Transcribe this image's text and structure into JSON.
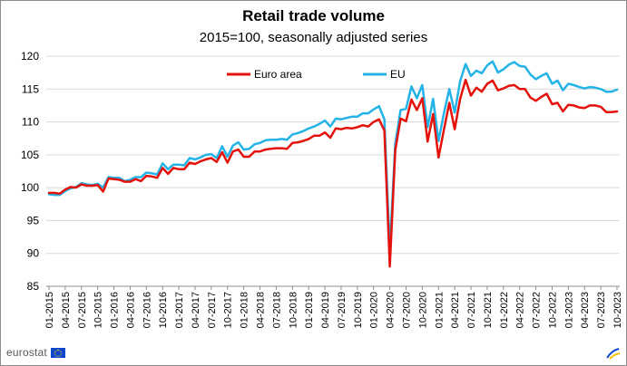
{
  "chart_data": {
    "type": "line",
    "title": "Retail trade volume",
    "subtitle": "2015=100, seasonally adjusted series",
    "xlabel": "",
    "ylabel": "",
    "ylim": [
      85,
      120
    ],
    "yticks": [
      85,
      90,
      95,
      100,
      105,
      110,
      115,
      120
    ],
    "grid": "horizontal",
    "legend_position": "top-left",
    "x_start": "2015-01",
    "x_tick_labels": [
      "01-2015",
      "04-2015",
      "07-2015",
      "10-2015",
      "01-2016",
      "04-2016",
      "07-2016",
      "10-2016",
      "01-2017",
      "04-2017",
      "07-2017",
      "10-2017",
      "01-2018",
      "04-2018",
      "07-2018",
      "10-2018",
      "01-2019",
      "04-2019",
      "07-2019",
      "10-2019",
      "01-2020",
      "04-2020",
      "07-2020",
      "10-2020",
      "01-2021",
      "04-2021",
      "07-2021",
      "10-2021",
      "01-2022",
      "04-2022",
      "07-2022",
      "10-2022",
      "01-2023",
      "04-2023",
      "07-2023",
      "10-2023"
    ],
    "series": [
      {
        "name": "Euro area",
        "color": "#e3120b",
        "values": [
          99.2,
          99.2,
          99.1,
          99.7,
          100.1,
          100.0,
          100.5,
          100.3,
          100.3,
          100.4,
          99.4,
          101.4,
          101.3,
          101.2,
          100.9,
          100.9,
          101.3,
          101.0,
          101.8,
          101.7,
          101.5,
          103.0,
          102.1,
          103.0,
          102.8,
          102.8,
          103.8,
          103.6,
          104.0,
          104.3,
          104.5,
          103.9,
          105.4,
          103.8,
          105.5,
          105.8,
          104.7,
          104.7,
          105.5,
          105.5,
          105.8,
          105.9,
          106.0,
          106.0,
          105.9,
          106.8,
          106.9,
          107.1,
          107.4,
          107.9,
          107.9,
          108.4,
          107.6,
          109.0,
          108.9,
          109.1,
          109.0,
          109.2,
          109.5,
          109.3,
          110.0,
          110.4,
          108.7,
          88.0,
          105.7,
          110.5,
          110.1,
          113.4,
          111.8,
          113.6,
          107.0,
          111.2,
          104.6,
          108.8,
          112.9,
          108.9,
          113.5,
          116.4,
          114.0,
          115.2,
          114.6,
          115.8,
          116.3,
          114.8,
          115.1,
          115.5,
          115.6,
          115.0,
          115.0,
          113.7,
          113.2,
          113.8,
          114.3,
          112.7,
          112.9,
          111.6,
          112.6,
          112.5,
          112.2,
          112.1,
          112.5,
          112.5,
          112.3,
          111.5,
          111.5,
          111.6
        ]
      },
      {
        "name": "EU",
        "color": "#24b3e6",
        "values": [
          99.0,
          98.9,
          98.9,
          99.5,
          99.9,
          100.1,
          100.7,
          100.5,
          100.4,
          100.6,
          100.0,
          101.6,
          101.5,
          101.5,
          101.0,
          101.2,
          101.6,
          101.6,
          102.3,
          102.2,
          102.0,
          103.7,
          102.8,
          103.5,
          103.5,
          103.4,
          104.5,
          104.3,
          104.6,
          105.0,
          105.1,
          104.5,
          106.3,
          104.7,
          106.4,
          106.9,
          105.8,
          105.9,
          106.6,
          106.8,
          107.2,
          107.3,
          107.3,
          107.4,
          107.3,
          108.1,
          108.3,
          108.6,
          109.0,
          109.3,
          109.7,
          110.2,
          109.3,
          110.5,
          110.4,
          110.6,
          110.8,
          110.8,
          111.3,
          111.3,
          111.9,
          112.4,
          110.4,
          90.5,
          106.7,
          111.8,
          112.0,
          115.4,
          113.6,
          115.6,
          109.2,
          113.5,
          107.1,
          111.3,
          115.0,
          111.4,
          116.2,
          118.8,
          117.0,
          117.8,
          117.4,
          118.6,
          119.2,
          117.5,
          118.0,
          118.7,
          119.1,
          118.5,
          118.4,
          117.2,
          116.5,
          117.0,
          117.4,
          115.8,
          116.3,
          114.8,
          115.8,
          115.6,
          115.3,
          115.1,
          115.3,
          115.2,
          115.0,
          114.6,
          114.6,
          114.9
        ]
      }
    ]
  },
  "branding": {
    "logo_text": "eurostat",
    "flag_icon": "eu-flag-icon"
  }
}
